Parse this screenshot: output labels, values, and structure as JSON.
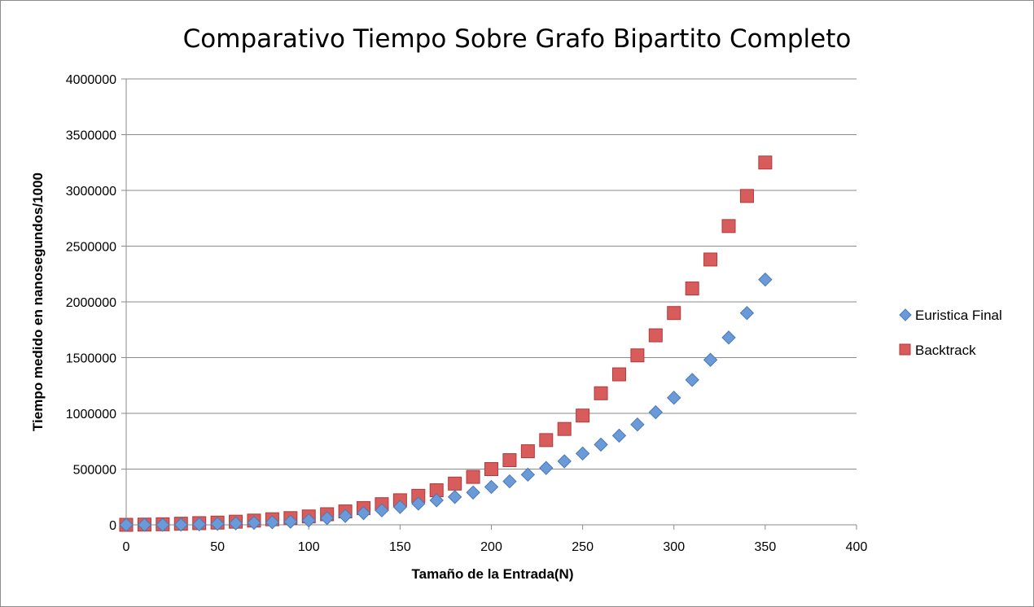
{
  "chart_data": {
    "type": "scatter",
    "title": "Comparativo Tiempo Sobre Grafo Bipartito Completo",
    "xlabel": "Tamaño de la Entrada(N)",
    "ylabel": "Tiempo medido en nanosegundos/1000",
    "xlim": [
      0,
      400
    ],
    "ylim": [
      0,
      4000000
    ],
    "xticks": [
      "0",
      "50",
      "100",
      "150",
      "200",
      "250",
      "300",
      "350",
      "400"
    ],
    "yticks": [
      "0",
      "500000",
      "1000000",
      "1500000",
      "2000000",
      "2500000",
      "3000000",
      "3500000",
      "4000000"
    ],
    "grid": "horizontal",
    "legend": "right",
    "series": [
      {
        "name": "Euristica Final",
        "marker": "diamond",
        "color": "#6a9ad8",
        "x": [
          0,
          10,
          20,
          30,
          40,
          50,
          60,
          70,
          80,
          90,
          100,
          110,
          120,
          130,
          140,
          150,
          160,
          170,
          180,
          190,
          200,
          210,
          220,
          230,
          240,
          250,
          260,
          270,
          280,
          290,
          300,
          310,
          320,
          330,
          340,
          350
        ],
        "y": [
          0,
          0,
          0,
          2000,
          5000,
          9000,
          13000,
          18000,
          23000,
          28000,
          40000,
          60000,
          80000,
          105000,
          130000,
          160000,
          190000,
          220000,
          250000,
          290000,
          340000,
          390000,
          450000,
          510000,
          570000,
          640000,
          720000,
          800000,
          900000,
          1010000,
          1140000,
          1300000,
          1480000,
          1680000,
          1900000,
          2200000
        ]
      },
      {
        "name": "Backtrack",
        "marker": "square",
        "color": "#d85c5c",
        "x": [
          0,
          10,
          20,
          30,
          40,
          50,
          60,
          70,
          80,
          90,
          100,
          110,
          120,
          130,
          140,
          150,
          160,
          170,
          180,
          190,
          200,
          210,
          220,
          230,
          240,
          250,
          260,
          270,
          280,
          290,
          300,
          310,
          320,
          330,
          340,
          350
        ],
        "y": [
          0,
          2000,
          5000,
          10000,
          15000,
          20000,
          28000,
          38000,
          50000,
          60000,
          75000,
          95000,
          120000,
          150000,
          185000,
          220000,
          260000,
          310000,
          370000,
          430000,
          500000,
          580000,
          660000,
          760000,
          860000,
          980000,
          1180000,
          1350000,
          1520000,
          1700000,
          1900000,
          2120000,
          2380000,
          2680000,
          2950000,
          3250000
        ]
      }
    ]
  }
}
